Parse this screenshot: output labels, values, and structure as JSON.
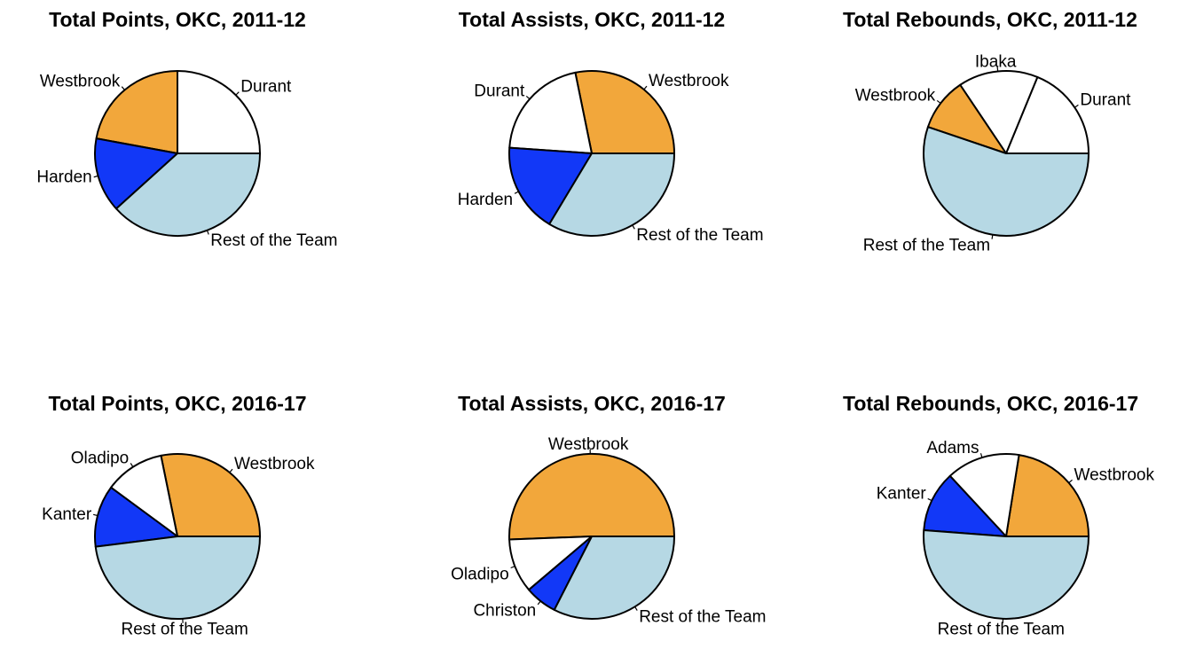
{
  "colors": {
    "Westbrook": "#F2A73B",
    "Durant": "#FFFFFF",
    "Ibaka": "#FFFFFF",
    "Oladipo": "#FFFFFF",
    "Adams": "#FFFFFF",
    "Harden": "#1238F7",
    "Kanter": "#1238F7",
    "Christon": "#1238F7",
    "Rest of the Team": "#B6D8E4",
    "outline": "#000000"
  },
  "chart_data": [
    {
      "type": "pie",
      "title": "Total Points, OKC, 2011-12",
      "slices": [
        {
          "label": "Durant",
          "value": 25.0
        },
        {
          "label": "Westbrook",
          "value": 22.1
        },
        {
          "label": "Harden",
          "value": 14.6
        },
        {
          "label": "Rest of the Team",
          "value": 38.3
        }
      ]
    },
    {
      "type": "pie",
      "title": "Total Assists, OKC, 2011-12",
      "slices": [
        {
          "label": "Westbrook",
          "value": 28.2
        },
        {
          "label": "Durant",
          "value": 20.7
        },
        {
          "label": "Harden",
          "value": 17.5
        },
        {
          "label": "Rest of the Team",
          "value": 33.6
        }
      ]
    },
    {
      "type": "pie",
      "title": "Total Rebounds, OKC, 2011-12",
      "slices": [
        {
          "label": "Durant",
          "value": 18.8
        },
        {
          "label": "Ibaka",
          "value": 15.6
        },
        {
          "label": "Westbrook",
          "value": 10.4
        },
        {
          "label": "Rest of the Team",
          "value": 55.2
        }
      ]
    },
    {
      "type": "pie",
      "title": "Total Points, OKC, 2016-17",
      "slices": [
        {
          "label": "Westbrook",
          "value": 28.2
        },
        {
          "label": "Oladipo",
          "value": 11.7
        },
        {
          "label": "Kanter",
          "value": 12.1
        },
        {
          "label": "Rest of the Team",
          "value": 48.0
        }
      ]
    },
    {
      "type": "pie",
      "title": "Total Assists, OKC, 2016-17",
      "slices": [
        {
          "label": "Westbrook",
          "value": 50.6
        },
        {
          "label": "Oladipo",
          "value": 10.6
        },
        {
          "label": "Christon",
          "value": 6.3
        },
        {
          "label": "Rest of the Team",
          "value": 32.5
        }
      ]
    },
    {
      "type": "pie",
      "title": "Total Rebounds, OKC, 2016-17",
      "slices": [
        {
          "label": "Westbrook",
          "value": 22.5
        },
        {
          "label": "Adams",
          "value": 14.4
        },
        {
          "label": "Kanter",
          "value": 11.9
        },
        {
          "label": "Rest of the Team",
          "value": 51.2
        }
      ]
    }
  ]
}
